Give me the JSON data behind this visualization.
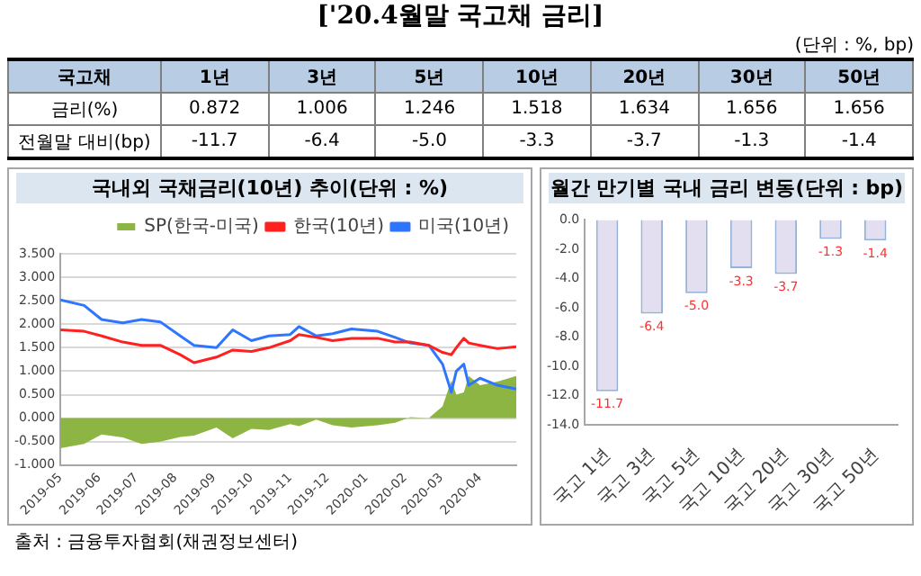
{
  "chart_data": [
    {
      "type": "other",
      "title": "['20.4월말 국고채 금리]",
      "subtitle": "(단위 : %, bp)",
      "ylabel": "국고채",
      "categories": [
        "1년",
        "3년",
        "5년",
        "10년",
        "20년",
        "30년",
        "50년"
      ],
      "y_categories": [
        "금리(%)",
        "전월말 대비(bp)"
      ],
      "cell_labels": [
        [
          "0.872",
          "1.006",
          "1.246",
          "1.518",
          "1.634",
          "1.656",
          "1.656"
        ],
        [
          "-11.7",
          "-6.4",
          "-5.0",
          "-3.3",
          "-3.7",
          "-1.3",
          "-1.4"
        ]
      ],
      "annotations": [
        "출처 : 금융투자협회(채권정보센터)"
      ]
    },
    {
      "type": "line",
      "title": "국내외 국채금리(10년) 추이(단위 : %)",
      "x": [
        "2019-05-01",
        "2019-05-20",
        "2019-06-03",
        "2019-06-20",
        "2019-07-05",
        "2019-07-20",
        "2019-08-05",
        "2019-08-16",
        "2019-09-03",
        "2019-09-16",
        "2019-10-01",
        "2019-10-15",
        "2019-11-01",
        "2019-11-08",
        "2019-11-22",
        "2019-12-05",
        "2019-12-20",
        "2020-01-10",
        "2020-01-24",
        "2020-02-05",
        "2020-02-20",
        "2020-03-02",
        "2020-03-09",
        "2020-03-13",
        "2020-03-19",
        "2020-03-23",
        "2020-04-01",
        "2020-04-15",
        "2020-04-30"
      ],
      "series": [
        {
          "name": "SP(한국-미국)",
          "type": "area",
          "color": "#8db543",
          "values": [
            -0.64,
            -0.55,
            -0.35,
            -0.41,
            -0.55,
            -0.5,
            -0.4,
            -0.37,
            -0.2,
            -0.43,
            -0.23,
            -0.25,
            -0.13,
            -0.17,
            -0.03,
            -0.15,
            -0.2,
            -0.15,
            -0.1,
            0.02,
            0.0,
            0.25,
            0.8,
            0.5,
            0.55,
            0.9,
            0.7,
            0.78,
            0.9
          ]
        },
        {
          "name": "한국(10년)",
          "color": "#ff2020",
          "values": [
            1.88,
            1.85,
            1.75,
            1.62,
            1.55,
            1.55,
            1.35,
            1.18,
            1.3,
            1.45,
            1.42,
            1.5,
            1.65,
            1.78,
            1.72,
            1.65,
            1.7,
            1.7,
            1.62,
            1.62,
            1.55,
            1.4,
            1.35,
            1.5,
            1.7,
            1.6,
            1.55,
            1.48,
            1.52
          ]
        },
        {
          "name": "미국(10년)",
          "color": "#2e75ff",
          "values": [
            2.52,
            2.4,
            2.1,
            2.03,
            2.1,
            2.05,
            1.75,
            1.55,
            1.5,
            1.88,
            1.65,
            1.75,
            1.78,
            1.95,
            1.75,
            1.8,
            1.9,
            1.85,
            1.72,
            1.6,
            1.55,
            1.15,
            0.55,
            1.0,
            1.15,
            0.7,
            0.85,
            0.7,
            0.62
          ]
        }
      ],
      "xlim": [
        "2019-05-01",
        "2020-04-30"
      ],
      "xticks": [
        {
          "value": "2019-05-01",
          "label": "2019-05"
        },
        {
          "value": "2019-06-01",
          "label": "2019-06"
        },
        {
          "value": "2019-07-01",
          "label": "2019-07"
        },
        {
          "value": "2019-08-01",
          "label": "2019-08"
        },
        {
          "value": "2019-09-01",
          "label": "2019-09"
        },
        {
          "value": "2019-10-01",
          "label": "2019-10"
        },
        {
          "value": "2019-11-01",
          "label": "2019-11"
        },
        {
          "value": "2019-12-01",
          "label": "2019-12"
        },
        {
          "value": "2020-01-01",
          "label": "2020-01"
        },
        {
          "value": "2020-02-01",
          "label": "2020-02"
        },
        {
          "value": "2020-03-01",
          "label": "2020-03"
        },
        {
          "value": "2020-04-01",
          "label": "2020-04"
        }
      ],
      "ylim": [
        -1,
        3.5
      ],
      "yticks": [
        {
          "value": -1,
          "label": "-1.000"
        },
        {
          "value": -0.5,
          "label": "-0.500"
        },
        {
          "value": 0,
          "label": "0.000"
        },
        {
          "value": 0.5,
          "label": "0.500"
        },
        {
          "value": 1,
          "label": "1.000"
        },
        {
          "value": 1.5,
          "label": "1.500"
        },
        {
          "value": 2,
          "label": "2.000"
        },
        {
          "value": 2.5,
          "label": "2.500"
        },
        {
          "value": 3,
          "label": "3.000"
        },
        {
          "value": 3.5,
          "label": "3.500"
        }
      ],
      "grid": "y",
      "legend": "top right",
      "marker": "none"
    },
    {
      "type": "bar",
      "title": "월간 만기별 국내 금리 변동(단위 : bp)",
      "categories": [
        "국고 1년",
        "국고 3년",
        "국고 5년",
        "국고 10년",
        "국고 20년",
        "국고 30년",
        "국고 50년"
      ],
      "values": [
        -11.7,
        -6.4,
        -5.0,
        -3.3,
        -3.7,
        -1.3,
        -1.4
      ],
      "color": "#e4dff0",
      "value_labels": [
        "-11.7",
        "-6.4",
        "-5.0",
        "-3.3",
        "-3.7",
        "-1.3",
        "-1.4"
      ],
      "ylim": [
        -14,
        0
      ],
      "yticks": [
        {
          "value": -14,
          "label": "-14.0"
        },
        {
          "value": -12,
          "label": "-12.0"
        },
        {
          "value": -10,
          "label": "-10.0"
        },
        {
          "value": -8,
          "label": "-8.0"
        },
        {
          "value": -6,
          "label": "-6.0"
        },
        {
          "value": -4,
          "label": "-4.0"
        },
        {
          "value": -2,
          "label": "-2.0"
        },
        {
          "value": 0,
          "label": "0.0"
        }
      ]
    }
  ]
}
